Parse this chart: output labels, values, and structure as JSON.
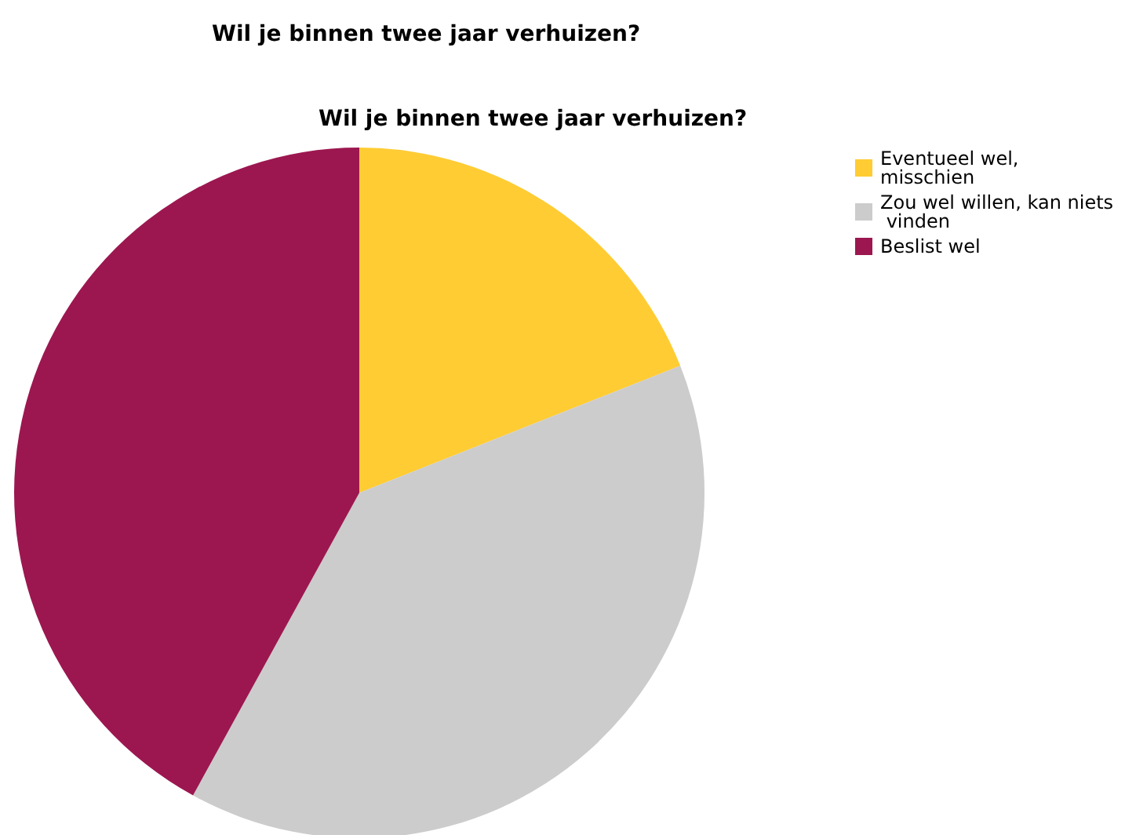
{
  "chart_data": {
    "type": "pie",
    "title": "Wil je binnen twee jaar verhuizen?",
    "subtitle": "Wil je binnen twee jaar verhuizen?",
    "categories": [
      "Eventueel wel, misschien",
      "Zou wel willen, kan niets vinden",
      "Beslist wel"
    ],
    "values": [
      19,
      39,
      42
    ],
    "colors": [
      "#ffcc33",
      "#cccccc",
      "#9c1750"
    ],
    "legend": "top right"
  }
}
